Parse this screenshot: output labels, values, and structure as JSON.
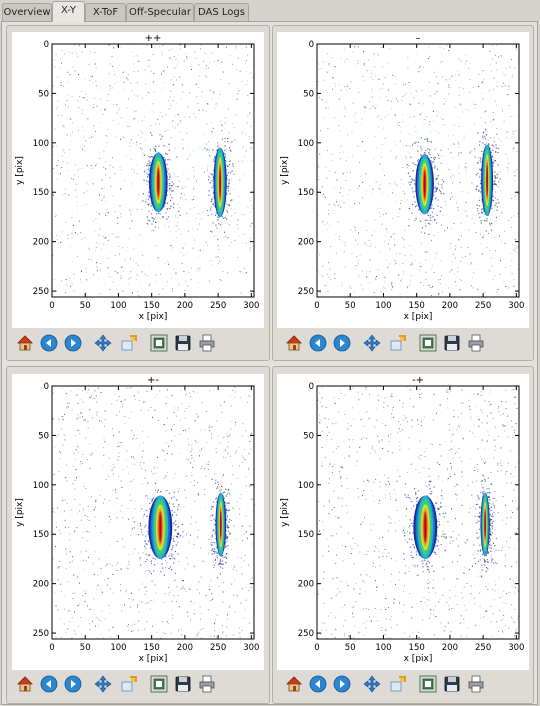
{
  "tabs": [
    {
      "label": "Overview",
      "active": false
    },
    {
      "label": "X-Y",
      "active": true
    },
    {
      "label": "X-ToF",
      "active": false
    },
    {
      "label": "Off-Specular",
      "active": false
    },
    {
      "label": "DAS Logs",
      "active": false
    }
  ],
  "plots": [
    {
      "title": "++",
      "xlabel": "x [pix]",
      "ylabel": "y [pix]"
    },
    {
      "title": "–",
      "xlabel": "x [pix]",
      "ylabel": "y [pix]"
    },
    {
      "title": "+-",
      "xlabel": "x [pix]",
      "ylabel": "y [pix]"
    },
    {
      "title": "-+",
      "xlabel": "x [pix]",
      "ylabel": "y [pix]"
    }
  ],
  "axes": {
    "xticks": [
      "0",
      "50",
      "100",
      "150",
      "200",
      "250",
      "300"
    ],
    "yticks": [
      "0",
      "50",
      "100",
      "150",
      "200",
      "250"
    ],
    "xlim": [
      0,
      304
    ],
    "ylim": [
      256,
      0
    ]
  },
  "toolbar_icons": [
    "home-icon",
    "back-arrow-icon",
    "forward-arrow-icon",
    "pan-icon",
    "zoom-icon",
    "subplots-icon",
    "save-icon",
    "print-icon"
  ],
  "chart_data": [
    {
      "type": "heatmap",
      "title": "++",
      "xlabel": "x [pix]",
      "ylabel": "y [pix]",
      "xlim": [
        0,
        304
      ],
      "ylim": [
        256,
        0
      ],
      "features": [
        {
          "cx": 160,
          "cy": 140,
          "rx": 14,
          "ry": 30
        },
        {
          "cx": 253,
          "cy": 140,
          "rx": 10,
          "ry": 35
        }
      ]
    },
    {
      "type": "heatmap",
      "title": "–",
      "xlabel": "x [pix]",
      "ylabel": "y [pix]",
      "xlim": [
        0,
        304
      ],
      "ylim": [
        256,
        0
      ],
      "features": [
        {
          "cx": 162,
          "cy": 142,
          "rx": 14,
          "ry": 30
        },
        {
          "cx": 256,
          "cy": 138,
          "rx": 9,
          "ry": 36
        }
      ]
    },
    {
      "type": "heatmap",
      "title": "+-",
      "xlabel": "x [pix]",
      "ylabel": "y [pix]",
      "xlim": [
        0,
        304
      ],
      "ylim": [
        256,
        0
      ],
      "features": [
        {
          "cx": 163,
          "cy": 143,
          "rx": 18,
          "ry": 32
        },
        {
          "cx": 254,
          "cy": 140,
          "rx": 8,
          "ry": 32
        }
      ]
    },
    {
      "type": "heatmap",
      "title": "-+",
      "xlabel": "x [pix]",
      "ylabel": "y [pix]",
      "xlim": [
        0,
        304
      ],
      "ylim": [
        256,
        0
      ],
      "features": [
        {
          "cx": 163,
          "cy": 143,
          "rx": 18,
          "ry": 32
        },
        {
          "cx": 253,
          "cy": 140,
          "rx": 7,
          "ry": 32
        }
      ]
    }
  ]
}
